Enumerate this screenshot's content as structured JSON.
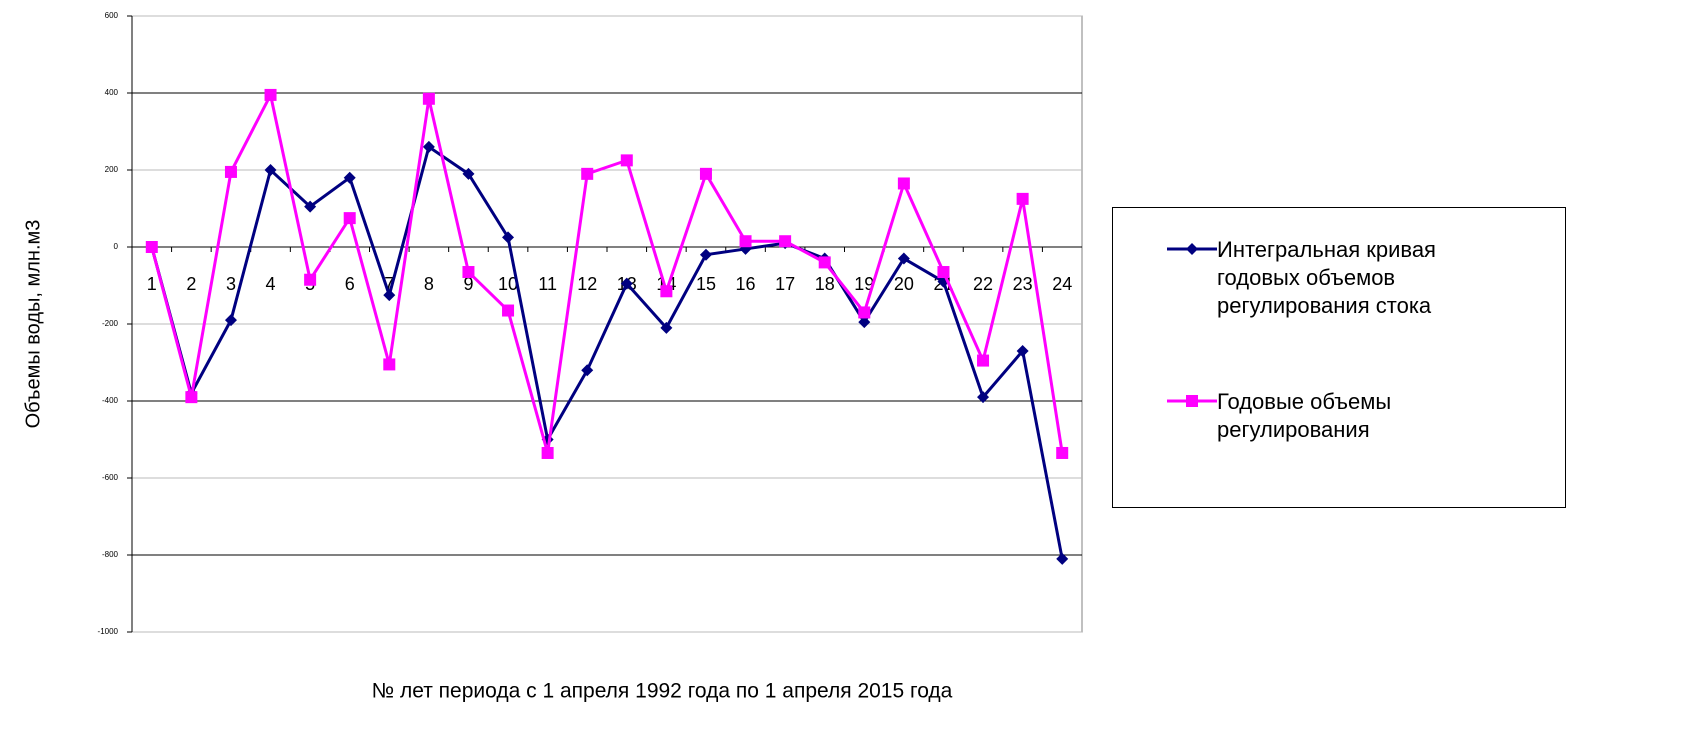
{
  "chart_data": {
    "type": "line",
    "x_label": "№ лет периода с 1 апреля 1992 года по 1 апреля 2015 года",
    "y_label": "Объемы воды, млн.м3",
    "categories": [
      1,
      2,
      3,
      4,
      5,
      6,
      7,
      8,
      9,
      10,
      11,
      12,
      13,
      14,
      15,
      16,
      17,
      18,
      19,
      20,
      21,
      22,
      23,
      24
    ],
    "series": [
      {
        "name": "Интегральная кривая\nгодовых объемов\nрегулирования стока",
        "color": "#000080",
        "marker": "diamond",
        "values": [
          0,
          -380,
          -190,
          200,
          105,
          180,
          -125,
          260,
          190,
          25,
          -500,
          -320,
          -95,
          -210,
          -20,
          -5,
          10,
          -30,
          -195,
          -30,
          -90,
          -390,
          -270,
          -810
        ]
      },
      {
        "name": "Годовые объемы\nрегулирования",
        "color": "#ff00ff",
        "marker": "square",
        "values": [
          0,
          -390,
          195,
          395,
          -85,
          75,
          -305,
          385,
          -65,
          -165,
          -535,
          190,
          225,
          -115,
          190,
          15,
          15,
          -40,
          -170,
          165,
          -65,
          -295,
          125,
          -535
        ]
      }
    ],
    "ylim": [
      -1000,
      600
    ],
    "yticks": [
      -1000,
      -800,
      -600,
      -400,
      -200,
      0,
      200,
      400,
      600
    ],
    "grid": true
  }
}
